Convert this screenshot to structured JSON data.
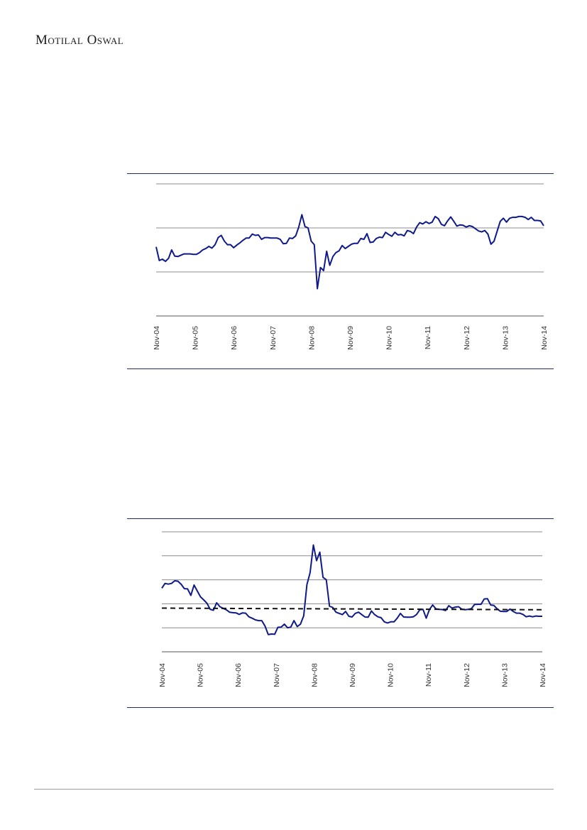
{
  "header": {
    "logo_text": "Motilal Oswal"
  },
  "colors": {
    "series": "#0f1a8a",
    "average": "#111111",
    "frame": "#1f2a6b",
    "grid": "#8c8c8c"
  },
  "chart_data": [
    {
      "type": "line",
      "title": "",
      "xlabel": "",
      "ylabel": "",
      "x_tick_labels": [
        "Nov-04",
        "Nov-05",
        "Nov-06",
        "Nov-07",
        "Nov-08",
        "Nov-09",
        "Nov-10",
        "Nov-11",
        "Nov-12",
        "Nov-13",
        "Nov-14"
      ],
      "y_tick_labels": [],
      "ylim": [
        0,
        300
      ],
      "grid_values": [
        100,
        200,
        300
      ],
      "grid": true,
      "series": [
        {
          "values": [
            157,
            126,
            129,
            124,
            131,
            150,
            136,
            135,
            138,
            141,
            141,
            141,
            140,
            140,
            144,
            150,
            153,
            158,
            154,
            162,
            178,
            183,
            170,
            162,
            162,
            155,
            161,
            166,
            172,
            177,
            177,
            186,
            183,
            184,
            174,
            178,
            178,
            177,
            177,
            177,
            174,
            164,
            165,
            177,
            176,
            182,
            202,
            230,
            203,
            200,
            170,
            162,
            62,
            110,
            103,
            147,
            115,
            135,
            144,
            148,
            160,
            153,
            158,
            163,
            165,
            165,
            176,
            174,
            187,
            167,
            168,
            176,
            179,
            178,
            190,
            185,
            181,
            190,
            184,
            185,
            182,
            194,
            192,
            187,
            202,
            212,
            209,
            214,
            210,
            213,
            226,
            221,
            208,
            205,
            216,
            225,
            215,
            204,
            207,
            206,
            202,
            205,
            203,
            198,
            193,
            191,
            194,
            186,
            163,
            170,
            193,
            215,
            222,
            213,
            222,
            224,
            224,
            226,
            226,
            224,
            219,
            224,
            217,
            217,
            216,
            205
          ]
        }
      ]
    },
    {
      "type": "line",
      "title": "",
      "xlabel": "",
      "ylabel": "",
      "x_tick_labels": [
        "Nov-04",
        "Nov-05",
        "Nov-06",
        "Nov-07",
        "Nov-08",
        "Nov-09",
        "Nov-10",
        "Nov-11",
        "Nov-12",
        "Nov-13",
        "Nov-14"
      ],
      "y_tick_labels": [],
      "ylim": [
        0,
        50
      ],
      "grid_values": [
        10,
        20,
        30,
        40,
        50
      ],
      "grid": true,
      "series": [
        {
          "values": [
            26.5,
            28.5,
            28.2,
            28.5,
            29.6,
            29.4,
            28.1,
            26.3,
            26.2,
            23.5,
            27.8,
            25.3,
            22.9,
            21.6,
            20.2,
            17.7,
            17.3,
            20.4,
            18.8,
            18.1,
            17.5,
            16.5,
            16.3,
            16.2,
            15.6,
            16.2,
            16.1,
            14.6,
            14.0,
            13.3,
            13.0,
            13.0,
            10.7,
            7.2,
            7.4,
            7.3,
            10.2,
            10.3,
            11.5,
            10.0,
            10.3,
            13.0,
            10.5,
            11.5,
            15.0,
            28.0,
            33.0,
            44.5,
            38.0,
            41.5,
            31.0,
            30.0,
            19.0,
            18.5,
            16.5,
            16.0,
            15.5,
            16.8,
            14.8,
            14.5,
            16.0,
            16.5,
            15.5,
            14.5,
            14.4,
            17.0,
            15.5,
            14.6,
            14.2,
            12.5,
            12.0,
            12.5,
            12.5,
            14.0,
            16.0,
            14.5,
            14.4,
            14.4,
            14.6,
            15.5,
            17.5,
            17.7,
            14.0,
            17.6,
            19.5,
            17.9,
            17.7,
            17.6,
            17.2,
            19.2,
            18.2,
            18.6,
            18.8,
            17.8,
            17.5,
            17.7,
            18.0,
            19.7,
            19.8,
            19.8,
            22.0,
            22.1,
            19.5,
            19.3,
            17.9,
            16.9,
            16.8,
            16.8,
            17.8,
            16.8,
            16.1,
            16.1,
            15.6,
            14.6,
            14.9,
            14.6,
            14.9,
            14.8,
            14.8
          ]
        },
        {
          "values": [
            18.2,
            17.5
          ],
          "style": "dashed"
        }
      ]
    }
  ]
}
